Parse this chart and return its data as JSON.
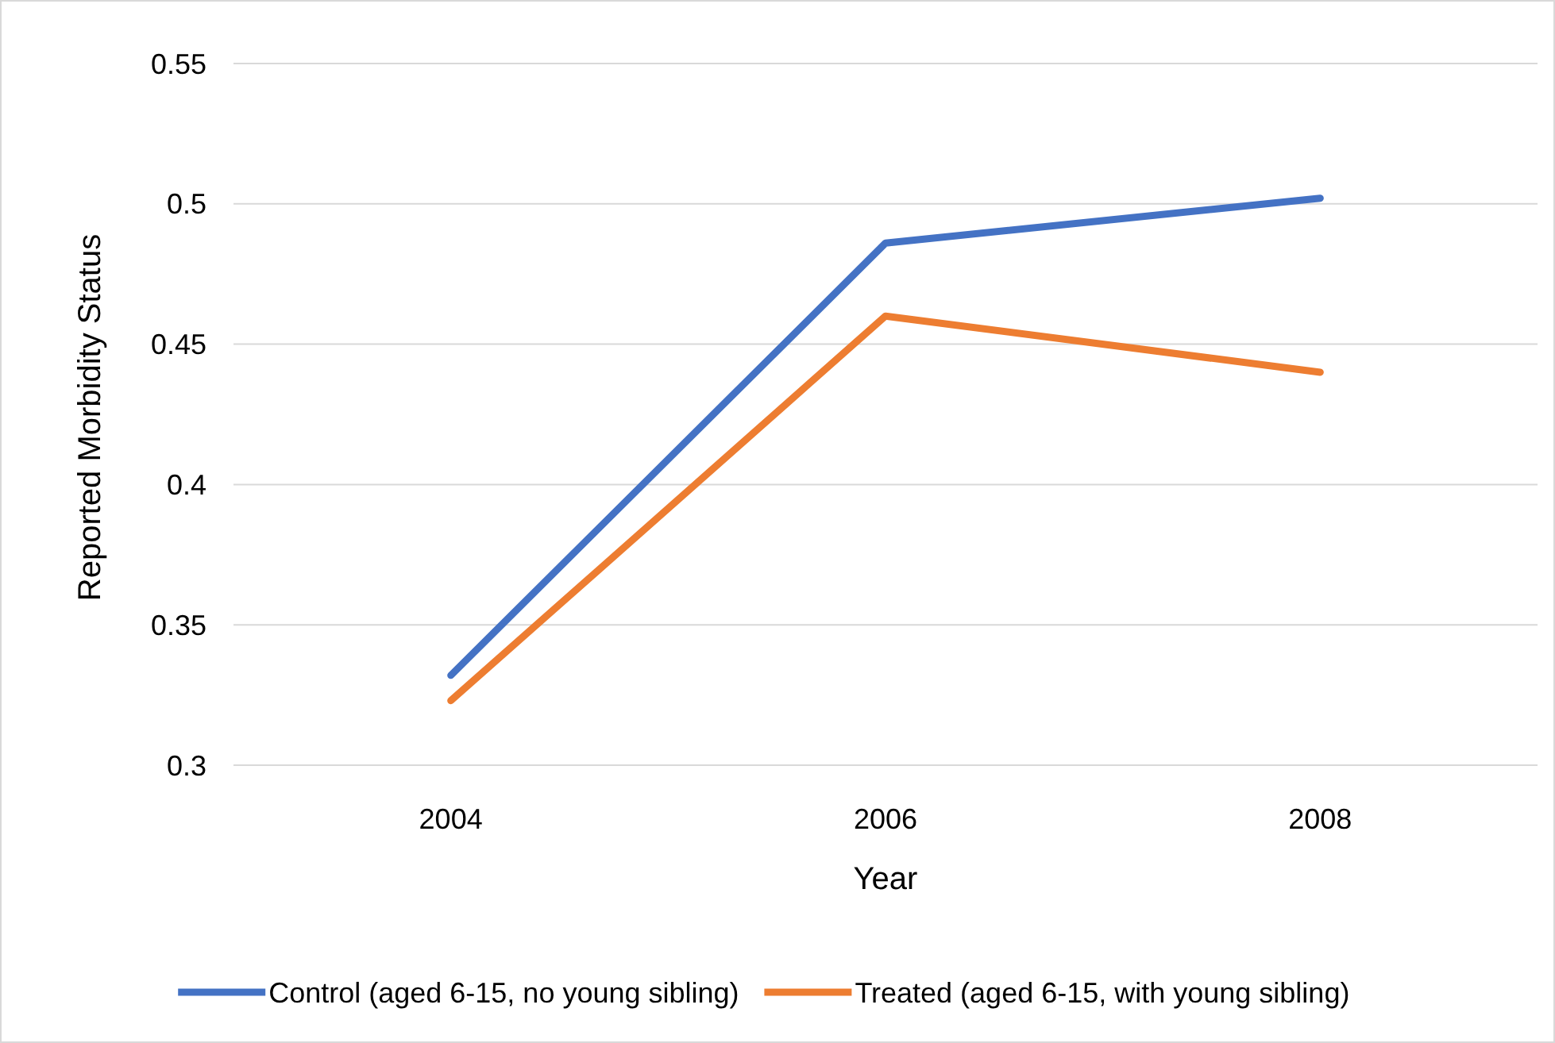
{
  "chart_data": {
    "type": "line",
    "xlabel": "Year",
    "ylabel": "Reported Morbidity Status",
    "categories": [
      "2004",
      "2006",
      "2008"
    ],
    "series": [
      {
        "name": "Control (aged 6-15, no young sibling)",
        "color": "#4472c4",
        "values": [
          0.332,
          0.486,
          0.502
        ]
      },
      {
        "name": "Treated (aged 6-15, with young sibling)",
        "color": "#ed7d31",
        "values": [
          0.323,
          0.46,
          0.44
        ]
      }
    ],
    "ylim": [
      0.3,
      0.55
    ],
    "yticks": [
      0.3,
      0.35,
      0.4,
      0.45,
      0.5,
      0.55
    ],
    "grid": "y",
    "legend": "bottom",
    "marker": "none",
    "line_style": "solid"
  }
}
